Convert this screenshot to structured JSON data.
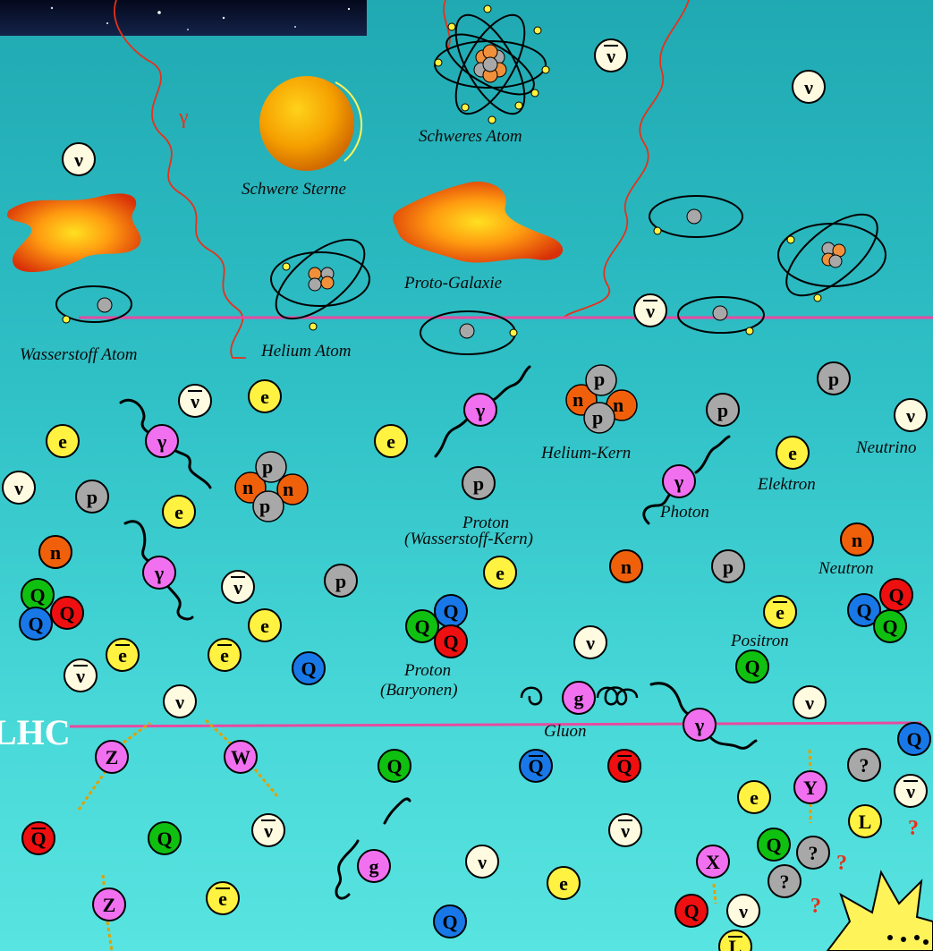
{
  "labels": {
    "schweres_atom": "Schweres Atom",
    "schwere_sterne": "Schwere Sterne",
    "proto_galaxie": "Proto-Galaxie",
    "wasserstoff_atom": "Wasserstoff  Atom",
    "helium_atom": "Helium Atom",
    "helium_kern": "Helium-Kern",
    "neutrino": "Neutrino",
    "elektron": "Elektron",
    "photon": "Photon",
    "proton_1": "Proton",
    "proton_2": "(Wasserstoff-Kern)",
    "neutron": "Neutron",
    "positron": "Positron",
    "baryon_1": "Proton",
    "baryon_2": "(Baryonen)",
    "gluon": "Gluon",
    "lhc": "LHC",
    "gamma": "γ"
  },
  "symbols": {
    "neutrino": "ν",
    "antineutrino": "ν",
    "electron": "e",
    "positron": "e",
    "proton": "p",
    "neutron": "n",
    "photon": "γ",
    "quark": "Q",
    "antiquark": "Q",
    "gluon": "g",
    "z_boson": "Z",
    "w_boson": "W",
    "x_boson": "X",
    "y_boson": "Y",
    "lepton": "L",
    "unknown": "?"
  },
  "colors": {
    "neutrino": "#fffbe0",
    "electron": "#fff240",
    "proton": "#a8a8a8",
    "neutron": "#f0600a",
    "photon": "#f070f0",
    "quark_green": "#10c010",
    "quark_red": "#ee1010",
    "quark_blue": "#1878e8",
    "boson": "#f070f0",
    "unknown": "#a8a8a8",
    "timeline_line": "#e84aa0",
    "gamma_ray": "#e8301a"
  }
}
